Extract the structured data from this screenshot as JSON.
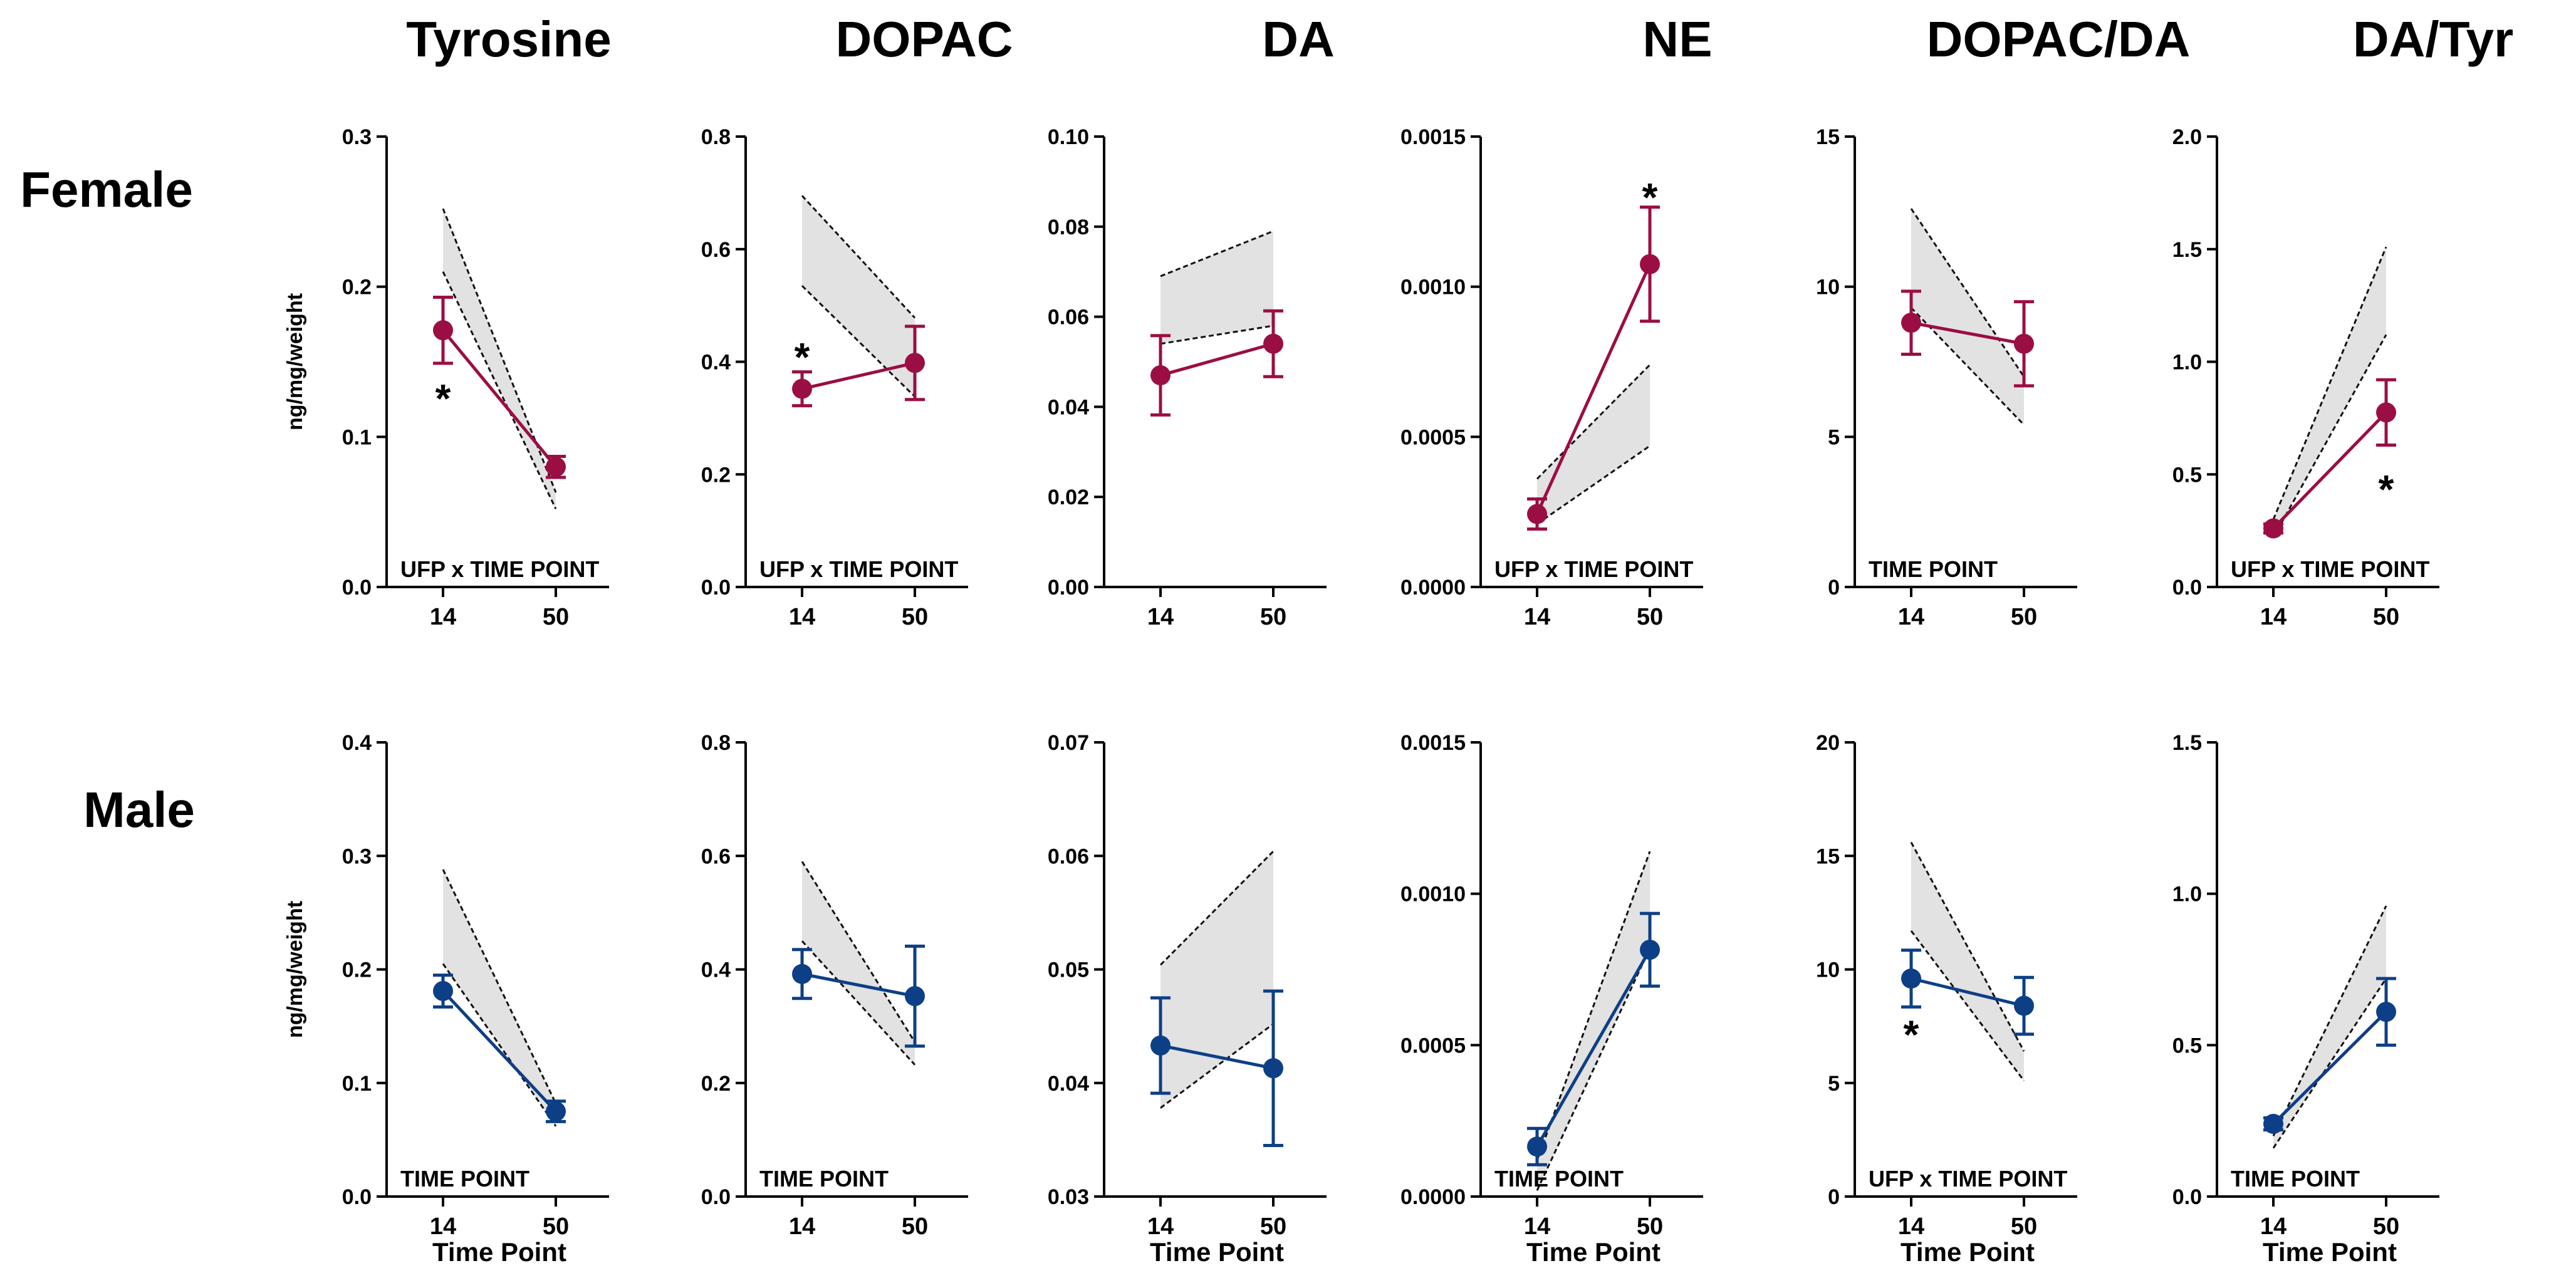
{
  "figure": {
    "row_labels": [
      "Female",
      "Male"
    ],
    "column_titles": [
      "Tyrosine",
      "DOPAC",
      "DA",
      "NE",
      "DOPAC/DA",
      "DA/Tyr"
    ],
    "colors": {
      "Female": "#9b0e43",
      "Male": "#0d3f86",
      "band_fill": "#e2e2e2",
      "band_edge": "#111111",
      "axis": "#000000"
    }
  },
  "chart_data": [
    {
      "type": "line",
      "row": "Female",
      "title": "Tyrosine",
      "categories": [
        "14",
        "50"
      ],
      "ylabel": "ng/mg/weight",
      "xlabel": "",
      "ylim": [
        0,
        0.3
      ],
      "yticks": [
        "0.0",
        "0.1",
        "0.2",
        "0.3"
      ],
      "series": [
        {
          "name": "Female",
          "values": [
            0.171,
            0.08
          ],
          "errors": [
            0.022,
            0.007
          ]
        }
      ],
      "band": {
        "lower": [
          0.21,
          0.052
        ],
        "upper": [
          0.252,
          0.063
        ]
      },
      "stars": [
        {
          "label": "*",
          "category": "14",
          "value": 0.128
        }
      ],
      "stat_label": "UFP x TIME POINT"
    },
    {
      "type": "line",
      "row": "Female",
      "title": "DOPAC",
      "categories": [
        "14",
        "50"
      ],
      "ylabel": "",
      "xlabel": "",
      "ylim": [
        0,
        0.8
      ],
      "yticks": [
        "0.0",
        "0.2",
        "0.4",
        "0.6",
        "0.8"
      ],
      "series": [
        {
          "name": "Female",
          "values": [
            0.352,
            0.398
          ],
          "errors": [
            0.03,
            0.065
          ]
        }
      ],
      "band": {
        "lower": [
          0.535,
          0.338
        ],
        "upper": [
          0.695,
          0.478
        ]
      },
      "stars": [
        {
          "label": "*",
          "category": "14",
          "value": 0.415
        }
      ],
      "stat_label": "UFP x TIME POINT"
    },
    {
      "type": "line",
      "row": "Female",
      "title": "DA",
      "categories": [
        "14",
        "50"
      ],
      "ylabel": "",
      "xlabel": "",
      "ylim": [
        0,
        0.1
      ],
      "yticks": [
        "0.00",
        "0.02",
        "0.04",
        "0.06",
        "0.08",
        "0.10"
      ],
      "series": [
        {
          "name": "Female",
          "values": [
            0.047,
            0.054
          ],
          "errors": [
            0.0088,
            0.0073
          ]
        }
      ],
      "band": {
        "lower": [
          0.054,
          0.058
        ],
        "upper": [
          0.069,
          0.079
        ]
      },
      "stars": [],
      "stat_label": ""
    },
    {
      "type": "line",
      "row": "Female",
      "title": "NE",
      "categories": [
        "14",
        "50"
      ],
      "ylabel": "",
      "xlabel": "",
      "ylim": [
        0,
        0.0015
      ],
      "yticks": [
        "0.0000",
        "0.0005",
        "0.0010",
        "0.0015"
      ],
      "series": [
        {
          "name": "Female",
          "values": [
            0.000243,
            0.001075
          ],
          "errors": [
            5e-05,
            0.00019
          ]
        }
      ],
      "band": {
        "lower": [
          0.00021,
          0.00047
        ],
        "upper": [
          0.00036,
          0.00074
        ]
      },
      "stars": [
        {
          "label": "*",
          "category": "50",
          "value": 0.00131
        }
      ],
      "stat_label": "UFP x TIME POINT"
    },
    {
      "type": "line",
      "row": "Female",
      "title": "DOPAC/DA",
      "categories": [
        "14",
        "50"
      ],
      "ylabel": "",
      "xlabel": "",
      "ylim": [
        0,
        15
      ],
      "yticks": [
        "0",
        "5",
        "10",
        "15"
      ],
      "series": [
        {
          "name": "Female",
          "values": [
            8.8,
            8.1
          ],
          "errors": [
            1.05,
            1.4
          ]
        }
      ],
      "band": {
        "lower": [
          9.3,
          5.4
        ],
        "upper": [
          12.6,
          7.0
        ]
      },
      "stars": [],
      "stat_label": "TIME POINT"
    },
    {
      "type": "line",
      "row": "Female",
      "title": "DA/Tyr",
      "categories": [
        "14",
        "50"
      ],
      "ylabel": "",
      "xlabel": "",
      "ylim": [
        0,
        2.0
      ],
      "yticks": [
        "0.0",
        "0.5",
        "1.0",
        "1.5",
        "2.0"
      ],
      "series": [
        {
          "name": "Female",
          "values": [
            0.26,
            0.775
          ],
          "errors": [
            0.02,
            0.145
          ]
        }
      ],
      "band": {
        "lower": [
          0.22,
          1.12
        ],
        "upper": [
          0.3,
          1.51
        ]
      },
      "stars": [
        {
          "label": "*",
          "category": "50",
          "value": 0.45
        }
      ],
      "stat_label": "UFP x TIME POINT"
    },
    {
      "type": "line",
      "row": "Male",
      "title": "Tyrosine",
      "categories": [
        "14",
        "50"
      ],
      "ylabel": "ng/mg/weight",
      "xlabel": "Time Point",
      "ylim": [
        0,
        0.4
      ],
      "yticks": [
        "0.0",
        "0.1",
        "0.2",
        "0.3",
        "0.4"
      ],
      "series": [
        {
          "name": "Male",
          "values": [
            0.181,
            0.075
          ],
          "errors": [
            0.014,
            0.009
          ]
        }
      ],
      "band": {
        "lower": [
          0.205,
          0.062
        ],
        "upper": [
          0.288,
          0.082
        ]
      },
      "stars": [],
      "stat_label": "TIME POINT"
    },
    {
      "type": "line",
      "row": "Male",
      "title": "DOPAC",
      "categories": [
        "14",
        "50"
      ],
      "ylabel": "",
      "xlabel": "",
      "ylim": [
        0,
        0.8
      ],
      "yticks": [
        "0.0",
        "0.2",
        "0.4",
        "0.6",
        "0.8"
      ],
      "series": [
        {
          "name": "Male",
          "values": [
            0.392,
            0.353
          ],
          "errors": [
            0.043,
            0.088
          ]
        }
      ],
      "band": {
        "lower": [
          0.45,
          0.232
        ],
        "upper": [
          0.59,
          0.272
        ]
      },
      "stars": [],
      "stat_label": "TIME POINT"
    },
    {
      "type": "line",
      "row": "Male",
      "title": "DA",
      "categories": [
        "14",
        "50"
      ],
      "ylabel": "",
      "xlabel": "Time Point",
      "ylim": [
        0.03,
        0.07
      ],
      "yticks": [
        "0.03",
        "0.04",
        "0.05",
        "0.06",
        "0.07"
      ],
      "series": [
        {
          "name": "Male",
          "values": [
            0.0433,
            0.0413
          ],
          "errors": [
            0.0042,
            0.0068
          ]
        }
      ],
      "band": {
        "lower": [
          0.0378,
          0.0452
        ],
        "upper": [
          0.0504,
          0.0604
        ]
      },
      "stars": [],
      "stat_label": ""
    },
    {
      "type": "line",
      "row": "Male",
      "title": "NE",
      "categories": [
        "14",
        "50"
      ],
      "ylabel": "",
      "xlabel": "Time Point",
      "ylim": [
        0,
        0.0015
      ],
      "yticks": [
        "0.0000",
        "0.0005",
        "0.0010",
        "0.0015"
      ],
      "series": [
        {
          "name": "Male",
          "values": [
            0.000165,
            0.000815
          ],
          "errors": [
            6e-05,
            0.00012
          ]
        }
      ],
      "band": {
        "lower": [
          2e-05,
          0.00082
        ],
        "upper": [
          0.00012,
          0.00114
        ]
      },
      "stars": [],
      "stat_label": "TIME POINT"
    },
    {
      "type": "line",
      "row": "Male",
      "title": "DOPAC/DA",
      "categories": [
        "14",
        "50"
      ],
      "ylabel": "",
      "xlabel": "Time Point",
      "ylim": [
        0,
        20
      ],
      "yticks": [
        "0",
        "5",
        "10",
        "15",
        "20"
      ],
      "series": [
        {
          "name": "Male",
          "values": [
            9.6,
            8.4
          ],
          "errors": [
            1.25,
            1.25
          ]
        }
      ],
      "band": {
        "lower": [
          11.7,
          5.1
        ],
        "upper": [
          15.6,
          6.4
        ]
      },
      "stars": [
        {
          "label": "*",
          "category": "14",
          "value": 7.3
        }
      ],
      "stat_label": "UFP x TIME POINT"
    },
    {
      "type": "line",
      "row": "Male",
      "title": "DA/Tyr",
      "categories": [
        "14",
        "50"
      ],
      "ylabel": "",
      "xlabel": "Time Point",
      "ylim": [
        0,
        1.5
      ],
      "yticks": [
        "0.0",
        "0.5",
        "1.0",
        "1.5"
      ],
      "series": [
        {
          "name": "Male",
          "values": [
            0.24,
            0.61
          ],
          "errors": [
            0.02,
            0.11
          ]
        }
      ],
      "band": {
        "lower": [
          0.16,
          0.72
        ],
        "upper": [
          0.2,
          0.96
        ]
      },
      "stars": [],
      "stat_label": "TIME POINT"
    }
  ]
}
